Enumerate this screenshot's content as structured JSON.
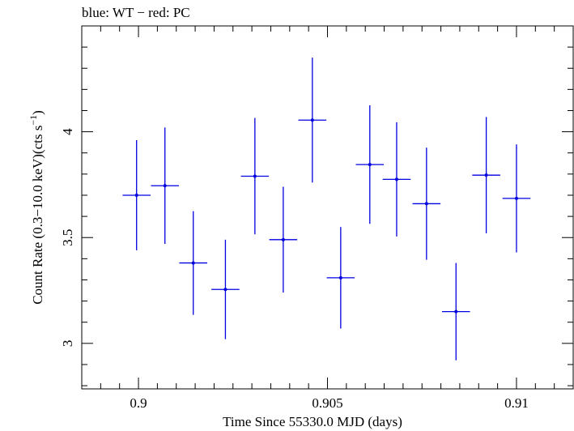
{
  "chart_data": {
    "type": "scatter",
    "title": "blue: WT − red: PC",
    "xlabel": "Time Since 55330.0 MJD (days)",
    "ylabel_main": "Count Rate (0.3−10.0 keV)(cts s",
    "ylabel_sup": "−1",
    "ylabel_end": ")",
    "xlim": [
      0.8985,
      0.9115
    ],
    "ylim": [
      2.785,
      4.5
    ],
    "xticks": [
      0.9,
      0.905,
      0.91
    ],
    "xtick_labels": [
      "0.9",
      "0.905",
      "0.91"
    ],
    "yticks": [
      3,
      3.5,
      4
    ],
    "ytick_labels": [
      "3",
      "3.5",
      "4"
    ],
    "grid": false,
    "colors": {
      "WT": "#0000e0",
      "PC": "#e00000"
    },
    "series": [
      {
        "name": "WT",
        "points": [
          {
            "x": 0.89995,
            "xerr": 0.00037,
            "y": 3.7,
            "yerr": 0.26
          },
          {
            "x": 0.9007,
            "xerr": 0.00037,
            "y": 3.745,
            "yerr": 0.275
          },
          {
            "x": 0.90145,
            "xerr": 0.00037,
            "y": 3.38,
            "yerr": 0.245
          },
          {
            "x": 0.9023,
            "xerr": 0.00037,
            "y": 3.255,
            "yerr": 0.235
          },
          {
            "x": 0.90308,
            "xerr": 0.00037,
            "y": 3.79,
            "yerr": 0.275
          },
          {
            "x": 0.90383,
            "xerr": 0.00037,
            "y": 3.49,
            "yerr": 0.25
          },
          {
            "x": 0.9046,
            "xerr": 0.00037,
            "y": 4.055,
            "yerr": 0.295
          },
          {
            "x": 0.90535,
            "xerr": 0.00037,
            "y": 3.31,
            "yerr": 0.24
          },
          {
            "x": 0.90612,
            "xerr": 0.00037,
            "y": 3.845,
            "yerr": 0.28
          },
          {
            "x": 0.90683,
            "xerr": 0.00037,
            "y": 3.775,
            "yerr": 0.27
          },
          {
            "x": 0.90762,
            "xerr": 0.00037,
            "y": 3.66,
            "yerr": 0.265
          },
          {
            "x": 0.9084,
            "xerr": 0.00037,
            "y": 3.15,
            "yerr": 0.23
          },
          {
            "x": 0.9092,
            "xerr": 0.00037,
            "y": 3.795,
            "yerr": 0.275
          },
          {
            "x": 0.91,
            "xerr": 0.00037,
            "y": 3.685,
            "yerr": 0.255
          }
        ]
      }
    ]
  }
}
